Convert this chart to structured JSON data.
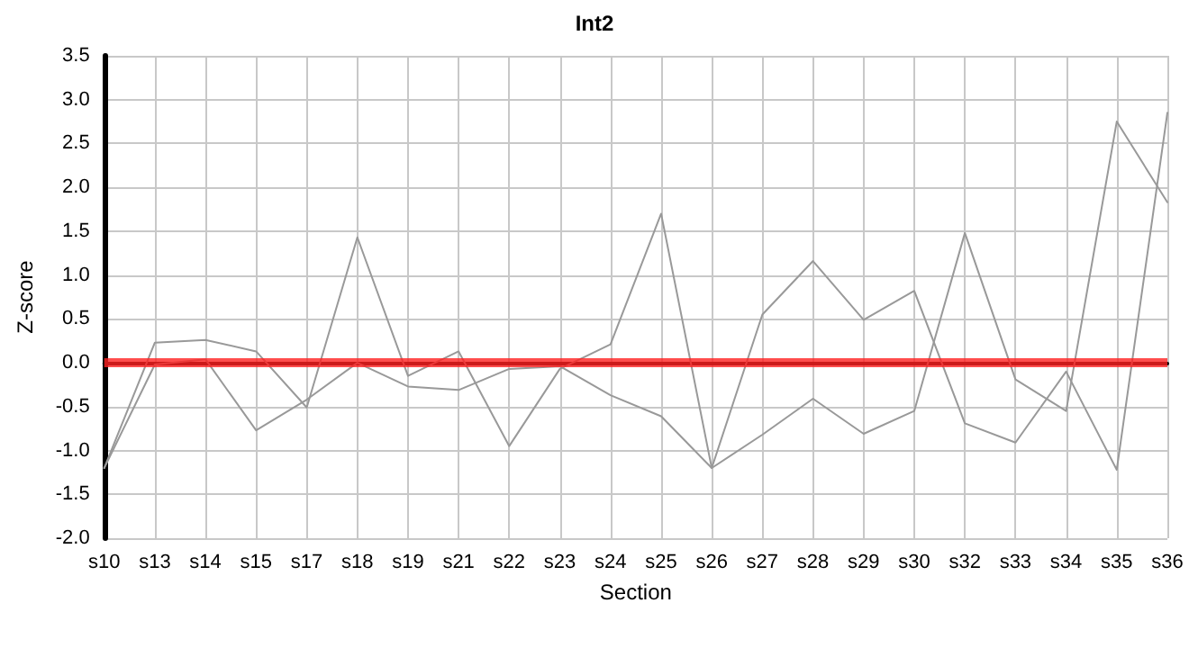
{
  "chart_data": {
    "type": "line",
    "title": "Int2",
    "xlabel": "Section",
    "ylabel": "Z-score",
    "categories": [
      "s10",
      "s13",
      "s14",
      "s15",
      "s17",
      "s18",
      "s19",
      "s21",
      "s22",
      "s23",
      "s24",
      "s25",
      "s26",
      "s27",
      "s28",
      "s29",
      "s30",
      "s32",
      "s33",
      "s34",
      "s35",
      "s36"
    ],
    "series": [
      {
        "color": "#999999",
        "values": [
          -1.2,
          0.23,
          0.26,
          0.13,
          -0.51,
          1.43,
          -0.15,
          0.13,
          -0.95,
          -0.07,
          0.21,
          1.7,
          -1.2,
          0.55,
          1.16,
          0.49,
          0.82,
          -0.69,
          -0.91,
          -0.1,
          -1.22,
          2.85
        ]
      },
      {
        "color": "#999999",
        "values": [
          -1.2,
          -0.02,
          0.04,
          -0.77,
          -0.42,
          0,
          -0.27,
          -0.31,
          -0.07,
          -0.04,
          -0.37,
          -0.61,
          -1.2,
          -0.82,
          -0.41,
          -0.81,
          -0.55,
          1.48,
          -0.19,
          -0.55,
          2.75,
          1.83
        ]
      }
    ],
    "ylim": [
      -2,
      3.5
    ],
    "yticks": [
      {
        "value": -2,
        "label": "-2.0"
      },
      {
        "value": -1.5,
        "label": "-1.5"
      },
      {
        "value": -1,
        "label": "-1.0"
      },
      {
        "value": -0.5,
        "label": "-0.5"
      },
      {
        "value": 0,
        "label": "0.0"
      },
      {
        "value": 0.5,
        "label": "0.5"
      },
      {
        "value": 1,
        "label": "1.0"
      },
      {
        "value": 1.5,
        "label": "1.5"
      },
      {
        "value": 2,
        "label": "2.0"
      },
      {
        "value": 2.5,
        "label": "2.5"
      },
      {
        "value": 3,
        "label": "3.0"
      },
      {
        "value": 3.5,
        "label": "3.5"
      }
    ],
    "ref_lines": [
      {
        "axis": "y",
        "value": 0,
        "color": "#ff2020",
        "line_style": "solid"
      }
    ],
    "grid": true,
    "marker": "none",
    "line_style": "solid"
  }
}
